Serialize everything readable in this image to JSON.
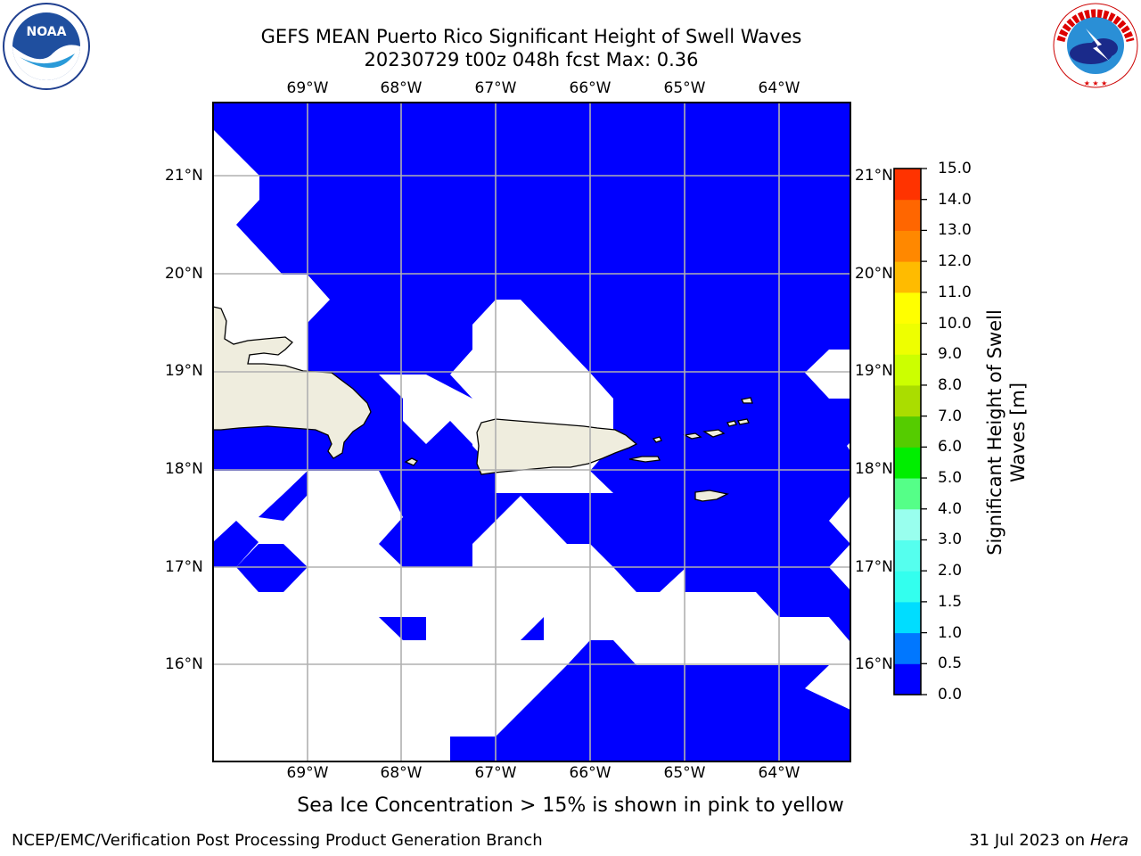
{
  "header": {
    "title_line1": "GEFS MEAN Puerto Rico Significant Height of Swell Waves",
    "title_line2": "20230729 t00z 048h fcst   Max: 0.36"
  },
  "logos": {
    "left": {
      "icon": "noaa-logo",
      "text": "NOAA"
    },
    "right": {
      "icon": "national-weather-service-logo",
      "text": "NATIONAL WEATHER SERVICE"
    }
  },
  "map": {
    "lon_labels": [
      "69°W",
      "68°W",
      "67°W",
      "66°W",
      "65°W",
      "64°W"
    ],
    "lat_labels": [
      "21°N",
      "20°N",
      "19°N",
      "18°N",
      "17°N",
      "16°N"
    ],
    "colors": {
      "ocean": "#0000ff",
      "land": "#efedde",
      "nodata": "#ffffff",
      "grid": "#b0b0b0"
    },
    "note": "Sea Ice Concentration > 15% is shown in pink to yellow"
  },
  "colorbar": {
    "title_line1": "Significant Height of Swell",
    "title_line2": "Waves [m]",
    "levels": [
      "0.0",
      "0.5",
      "1.0",
      "1.5",
      "2.0",
      "3.0",
      "4.0",
      "5.0",
      "6.0",
      "7.0",
      "8.0",
      "9.0",
      "10.0",
      "11.0",
      "12.0",
      "13.0",
      "14.0",
      "15.0"
    ],
    "colors": [
      "#0000ff",
      "#0077ff",
      "#00ddff",
      "#33ffee",
      "#55ffee",
      "#99ffee",
      "#55ff88",
      "#00ee00",
      "#55cc00",
      "#aadd00",
      "#ccff00",
      "#eeff00",
      "#ffff00",
      "#ffbb00",
      "#ff8800",
      "#ff6600",
      "#ff3300",
      "#ff0000"
    ]
  },
  "footer": {
    "left": "NCEP/EMC/Verification Post Processing Product Generation Branch",
    "right_date": "31 Jul 2023 on ",
    "right_host": "Hera"
  }
}
